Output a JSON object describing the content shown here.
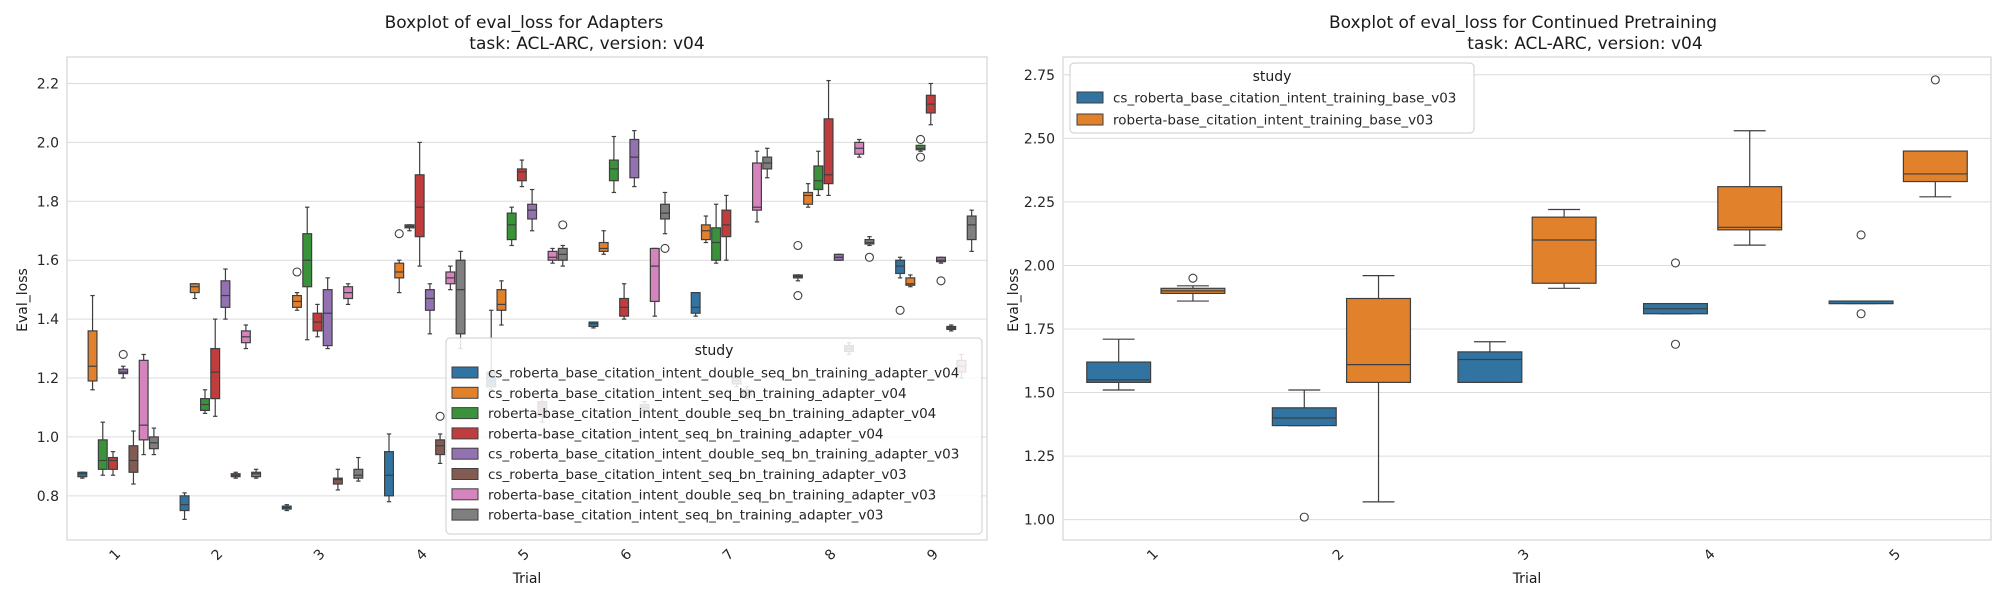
{
  "chart_data": [
    {
      "type": "box",
      "title": "Boxplot of eval_loss for Adapters",
      "subtitle": "task: ACL-ARC, version: v04",
      "xlabel": "Trial",
      "ylabel": "Eval_loss",
      "categories": [
        "1",
        "2",
        "3",
        "4",
        "5",
        "6",
        "7",
        "8",
        "9"
      ],
      "ylim": [
        0.65,
        2.29
      ],
      "yticks": [
        0.8,
        1.0,
        1.2,
        1.4,
        1.6,
        1.8,
        2.0,
        2.2
      ],
      "ytick_labels": [
        "0.8",
        "1.0",
        "1.2",
        "1.4",
        "1.6",
        "1.8",
        "2.0",
        "2.2"
      ],
      "grid": true,
      "legend": {
        "title": "study",
        "position": "lower-right"
      },
      "series": [
        {
          "name": "cs_roberta_base_citation_intent_double_seq_bn_training_adapter_v04",
          "color": "#3274a1",
          "boxes": [
            [
              0.86,
              0.865,
              0.875,
              0.88,
              0.88
            ],
            [
              0.72,
              0.75,
              0.77,
              0.8,
              0.81
            ],
            [
              0.75,
              0.755,
              0.76,
              0.765,
              0.77
            ],
            [
              0.78,
              0.8,
              0.87,
              0.95,
              1.01
            ],
            [
              1.16,
              1.17,
              1.19,
              1.22,
              1.43
            ],
            [
              1.37,
              1.375,
              1.385,
              1.39,
              1.39
            ],
            [
              1.41,
              1.42,
              1.44,
              1.49,
              1.49
            ],
            [
              1.53,
              1.54,
              1.545,
              1.55,
              1.55
            ],
            [
              1.54,
              1.555,
              1.58,
              1.6,
              1.61
            ]
          ],
          "outliers": [
            [],
            [],
            [],
            [],
            [],
            [],
            [],
            [
              1.48,
              1.65
            ],
            [
              1.43
            ]
          ]
        },
        {
          "name": "cs_roberta_base_citation_intent_seq_bn_training_adapter_v04",
          "color": "#e1812c",
          "boxes": [
            [
              1.16,
              1.19,
              1.24,
              1.36,
              1.48
            ],
            [
              1.47,
              1.49,
              1.51,
              1.52,
              1.52
            ],
            [
              1.43,
              1.44,
              1.46,
              1.48,
              1.49
            ],
            [
              1.49,
              1.54,
              1.56,
              1.59,
              1.6
            ],
            [
              1.38,
              1.43,
              1.45,
              1.5,
              1.53
            ],
            [
              1.62,
              1.63,
              1.64,
              1.66,
              1.7
            ],
            [
              1.66,
              1.67,
              1.7,
              1.72,
              1.75
            ],
            [
              1.78,
              1.79,
              1.82,
              1.83,
              1.86
            ],
            [
              1.51,
              1.515,
              1.52,
              1.54,
              1.55
            ]
          ],
          "outliers": [
            [],
            [],
            [
              1.56
            ],
            [
              1.69
            ],
            [],
            [],
            [],
            [],
            []
          ]
        },
        {
          "name": "roberta-base_citation_intent_double_seq_bn_training_adapter_v04",
          "color": "#3a923a",
          "boxes": [
            [
              0.87,
              0.89,
              0.92,
              0.99,
              1.05
            ],
            [
              1.08,
              1.09,
              1.11,
              1.13,
              1.16
            ],
            [
              1.33,
              1.51,
              1.6,
              1.69,
              1.78
            ],
            [
              1.7,
              1.71,
              1.715,
              1.72,
              1.72
            ],
            [
              1.65,
              1.67,
              1.72,
              1.76,
              1.78
            ],
            [
              1.83,
              1.87,
              1.91,
              1.94,
              2.02
            ],
            [
              1.59,
              1.6,
              1.66,
              1.71,
              1.79
            ],
            [
              1.82,
              1.84,
              1.87,
              1.92,
              1.97
            ],
            [
              1.97,
              1.975,
              1.98,
              1.99,
              1.99
            ]
          ],
          "outliers": [
            [],
            [],
            [],
            [],
            [],
            [],
            [],
            [],
            [
              1.95,
              2.01
            ]
          ]
        },
        {
          "name": "roberta-base_citation_intent_seq_bn_training_adapter_v04",
          "color": "#c03d3e",
          "boxes": [
            [
              0.87,
              0.89,
              0.92,
              0.93,
              0.95
            ],
            [
              1.07,
              1.13,
              1.22,
              1.3,
              1.4
            ],
            [
              1.34,
              1.36,
              1.39,
              1.42,
              1.45
            ],
            [
              1.58,
              1.68,
              1.78,
              1.89,
              2.0
            ],
            [
              1.85,
              1.87,
              1.9,
              1.91,
              1.94
            ],
            [
              1.4,
              1.41,
              1.44,
              1.47,
              1.52
            ],
            [
              1.6,
              1.68,
              1.72,
              1.77,
              1.82
            ],
            [
              1.82,
              1.86,
              1.89,
              2.08,
              2.21
            ],
            [
              2.06,
              2.1,
              2.13,
              2.16,
              2.2
            ]
          ],
          "outliers": [
            [],
            [],
            [],
            [],
            [],
            [],
            [],
            [],
            []
          ]
        },
        {
          "name": "cs_roberta_base_citation_intent_double_seq_bn_training_adapter_v03",
          "color": "#9372b2",
          "boxes": [
            [
              1.2,
              1.215,
              1.22,
              1.23,
              1.24
            ],
            [
              1.4,
              1.44,
              1.48,
              1.53,
              1.57
            ],
            [
              1.3,
              1.31,
              1.42,
              1.5,
              1.54
            ],
            [
              1.35,
              1.43,
              1.47,
              1.5,
              1.52
            ],
            [
              1.7,
              1.74,
              1.77,
              1.79,
              1.84
            ],
            [
              1.85,
              1.88,
              1.95,
              2.01,
              2.04
            ],
            [
              1.17,
              1.18,
              1.19,
              1.2,
              1.21
            ],
            [
              1.6,
              1.6,
              1.61,
              1.62,
              1.62
            ],
            [
              1.59,
              1.595,
              1.6,
              1.61,
              1.61
            ]
          ],
          "outliers": [
            [
              1.28
            ],
            [],
            [],
            [],
            [],
            [],
            [],
            [],
            [
              1.53
            ]
          ]
        },
        {
          "name": "cs_roberta_base_citation_intent_seq_bn_training_adapter_v03",
          "color": "#845b53",
          "boxes": [
            [
              0.84,
              0.88,
              0.92,
              0.97,
              1.02
            ],
            [
              0.86,
              0.865,
              0.87,
              0.875,
              0.88
            ],
            [
              0.82,
              0.84,
              0.855,
              0.86,
              0.89
            ],
            [
              0.91,
              0.94,
              0.97,
              0.99,
              1.01
            ],
            [
              1.05,
              1.07,
              1.09,
              1.12,
              1.15
            ],
            [
              1.08,
              1.09,
              1.1,
              1.11,
              1.12
            ],
            [
              1.13,
              1.14,
              1.15,
              1.16,
              1.17
            ],
            [
              1.28,
              1.29,
              1.3,
              1.31,
              1.32
            ],
            [
              1.36,
              1.365,
              1.37,
              1.375,
              1.38
            ]
          ],
          "outliers": [
            [],
            [],
            [],
            [
              1.07
            ],
            [],
            [],
            [],
            [],
            []
          ]
        },
        {
          "name": "roberta-base_citation_intent_double_seq_bn_training_adapter_v03",
          "color": "#d684bd",
          "boxes": [
            [
              0.94,
              0.99,
              1.04,
              1.26,
              1.28
            ],
            [
              1.3,
              1.32,
              1.34,
              1.36,
              1.38
            ],
            [
              1.45,
              1.47,
              1.49,
              1.51,
              1.52
            ],
            [
              1.5,
              1.52,
              1.54,
              1.56,
              1.58
            ],
            [
              1.59,
              1.6,
              1.61,
              1.63,
              1.64
            ],
            [
              1.41,
              1.46,
              1.58,
              1.64,
              1.64
            ],
            [
              1.73,
              1.77,
              1.78,
              1.93,
              1.97
            ],
            [
              1.95,
              1.96,
              1.98,
              2.0,
              2.01
            ],
            [
              1.2,
              1.22,
              1.24,
              1.26,
              1.28
            ]
          ],
          "outliers": [
            [],
            [],
            [],
            [],
            [],
            [],
            [],
            [],
            []
          ]
        },
        {
          "name": "roberta-base_citation_intent_seq_bn_training_adapter_v03",
          "color": "#7f7f7f",
          "boxes": [
            [
              0.94,
              0.96,
              0.98,
              1.0,
              1.03
            ],
            [
              0.86,
              0.865,
              0.875,
              0.88,
              0.89
            ],
            [
              0.85,
              0.86,
              0.87,
              0.89,
              0.93
            ],
            [
              1.3,
              1.35,
              1.5,
              1.6,
              1.63
            ],
            [
              1.58,
              1.6,
              1.62,
              1.64,
              1.65
            ],
            [
              1.69,
              1.74,
              1.76,
              1.79,
              1.83
            ],
            [
              1.88,
              1.91,
              1.93,
              1.95,
              1.98
            ],
            [
              1.65,
              1.655,
              1.66,
              1.67,
              1.68
            ],
            [
              1.63,
              1.67,
              1.72,
              1.75,
              1.77
            ]
          ],
          "outliers": [
            [],
            [],
            [],
            [],
            [
              1.72
            ],
            [
              1.64
            ],
            [],
            [
              1.61
            ],
            []
          ]
        }
      ]
    },
    {
      "type": "box",
      "title": "Boxplot of eval_loss for Continued Pretraining",
      "subtitle": "task: ACL-ARC, version: v04",
      "xlabel": "Trial",
      "ylabel": "Eval_loss",
      "categories": [
        "1",
        "2",
        "3",
        "4",
        "5"
      ],
      "ylim": [
        0.92,
        2.82
      ],
      "yticks": [
        1.0,
        1.25,
        1.5,
        1.75,
        2.0,
        2.25,
        2.5,
        2.75
      ],
      "ytick_labels": [
        "1.00",
        "1.25",
        "1.50",
        "1.75",
        "2.00",
        "2.25",
        "2.50",
        "2.75"
      ],
      "grid": true,
      "legend": {
        "title": "study",
        "position": "top-left"
      },
      "series": [
        {
          "name": "cs_roberta_base_citation_intent_training_base_v03",
          "color": "#3274a1",
          "boxes": [
            [
              1.51,
              1.54,
              1.55,
              1.62,
              1.71
            ],
            [
              1.37,
              1.37,
              1.4,
              1.44,
              1.51
            ],
            [
              1.54,
              1.54,
              1.63,
              1.66,
              1.7
            ],
            [
              1.81,
              1.81,
              1.83,
              1.85,
              1.85
            ],
            [
              1.85,
              1.85,
              1.85,
              1.86,
              1.86
            ]
          ],
          "outliers": [
            [],
            [
              1.01
            ],
            [],
            [
              1.69,
              2.01
            ],
            [
              1.81,
              2.12
            ]
          ]
        },
        {
          "name": "roberta-base_citation_intent_training_base_v03",
          "color": "#e1812c",
          "boxes": [
            [
              1.86,
              1.89,
              1.9,
              1.91,
              1.92
            ],
            [
              1.07,
              1.54,
              1.61,
              1.87,
              1.96
            ],
            [
              1.91,
              1.93,
              2.1,
              2.19,
              2.22
            ],
            [
              2.08,
              2.14,
              2.15,
              2.31,
              2.53
            ],
            [
              2.27,
              2.33,
              2.36,
              2.45,
              2.45
            ]
          ],
          "outliers": [
            [
              1.95
            ],
            [],
            [],
            [],
            [
              2.73
            ]
          ]
        }
      ]
    }
  ]
}
